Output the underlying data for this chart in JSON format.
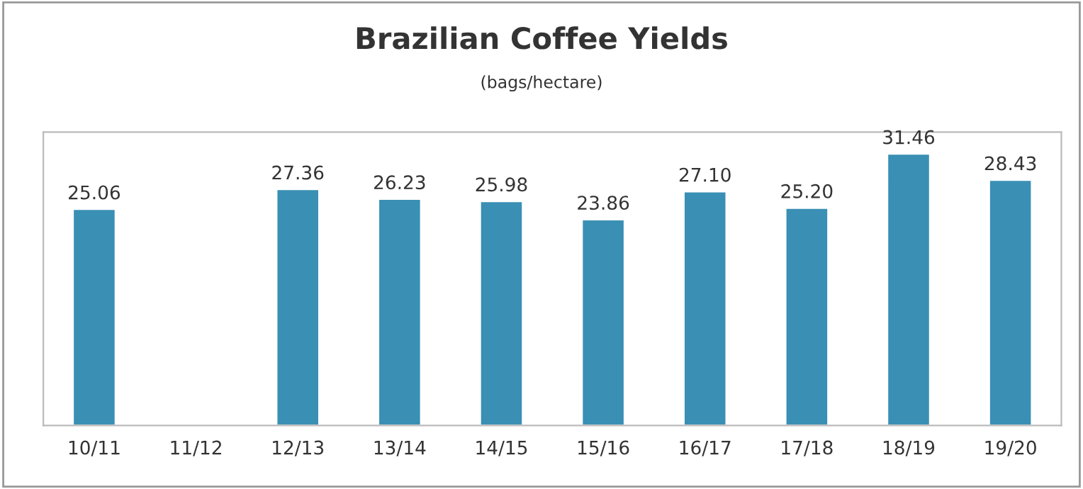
{
  "chart_data": {
    "type": "bar",
    "title": "Brazilian Coffee Yields",
    "subtitle": "(bags/hectare)",
    "categories": [
      "10/11",
      "11/12",
      "12/13",
      "13/14",
      "14/15",
      "15/16",
      "16/17",
      "17/18",
      "18/19",
      "19/20"
    ],
    "values": [
      25.06,
      null,
      27.36,
      26.23,
      25.98,
      23.86,
      27.1,
      25.2,
      31.46,
      28.43
    ],
    "value_labels": [
      "25.06",
      null,
      "27.36",
      "26.23",
      "25.98",
      "23.86",
      "27.10",
      "25.20",
      "31.46",
      "28.43"
    ],
    "color": "#3a8fb4",
    "tick_labels": "x",
    "grid": false,
    "legend": false
  }
}
